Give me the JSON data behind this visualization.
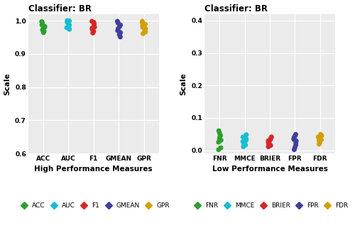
{
  "left_title": "Classifier: BR",
  "right_title": "Classifier: BR",
  "left_xlabel": "High Performance Measures",
  "right_xlabel": "Low Performance Measures",
  "ylabel": "Scale",
  "left_categories": [
    "ACC",
    "AUC",
    "F1",
    "GMEAN",
    "GPR"
  ],
  "right_categories": [
    "FNR",
    "MMCE",
    "BRIER",
    "FPR",
    "FDR"
  ],
  "left_colors": [
    "#2ca02c",
    "#17becf",
    "#d62728",
    "#3f3f9f",
    "#d4a000"
  ],
  "right_colors": [
    "#2ca02c",
    "#17becf",
    "#d62728",
    "#3f3f9f",
    "#d4a000"
  ],
  "left_data": [
    [
      0.964,
      0.968,
      0.972,
      0.976,
      0.98,
      0.983,
      0.987,
      0.993,
      0.997
    ],
    [
      0.974,
      0.979,
      0.983,
      0.987,
      0.991,
      0.994,
      0.997,
      0.999,
      1.0
    ],
    [
      0.963,
      0.968,
      0.973,
      0.977,
      0.981,
      0.985,
      0.99,
      0.995,
      0.998
    ],
    [
      0.951,
      0.958,
      0.964,
      0.97,
      0.976,
      0.982,
      0.987,
      0.993,
      0.998
    ],
    [
      0.961,
      0.966,
      0.971,
      0.976,
      0.98,
      0.984,
      0.989,
      0.994,
      0.998
    ]
  ],
  "right_data": [
    [
      0.002,
      0.008,
      0.025,
      0.031,
      0.036,
      0.041,
      0.046,
      0.053,
      0.06
    ],
    [
      0.011,
      0.016,
      0.02,
      0.024,
      0.027,
      0.031,
      0.036,
      0.041,
      0.048
    ],
    [
      0.011,
      0.015,
      0.019,
      0.023,
      0.026,
      0.029,
      0.033,
      0.037,
      0.041
    ],
    [
      0.002,
      0.009,
      0.017,
      0.024,
      0.029,
      0.034,
      0.039,
      0.044,
      0.049
    ],
    [
      0.019,
      0.023,
      0.027,
      0.03,
      0.033,
      0.037,
      0.041,
      0.045,
      0.049
    ]
  ],
  "left_ylim": [
    0.6,
    1.02
  ],
  "left_yticks": [
    0.6,
    0.7,
    0.8,
    0.9,
    1.0
  ],
  "right_ylim": [
    -0.01,
    0.42
  ],
  "right_yticks": [
    0.0,
    0.1,
    0.2,
    0.3,
    0.4
  ],
  "bg_color": "#ebebeb",
  "grid_color": "white",
  "left_legend_labels": [
    "ACC",
    "AUC",
    "F1",
    "GMEAN",
    "GPR"
  ],
  "right_legend_labels": [
    "FNR",
    "MMCE",
    "BRIER",
    "FPR",
    "FDR"
  ],
  "title_fontsize": 8.5,
  "label_fontsize": 7.5,
  "tick_fontsize": 6.5,
  "legend_fontsize": 6.5,
  "marker_size": 25
}
